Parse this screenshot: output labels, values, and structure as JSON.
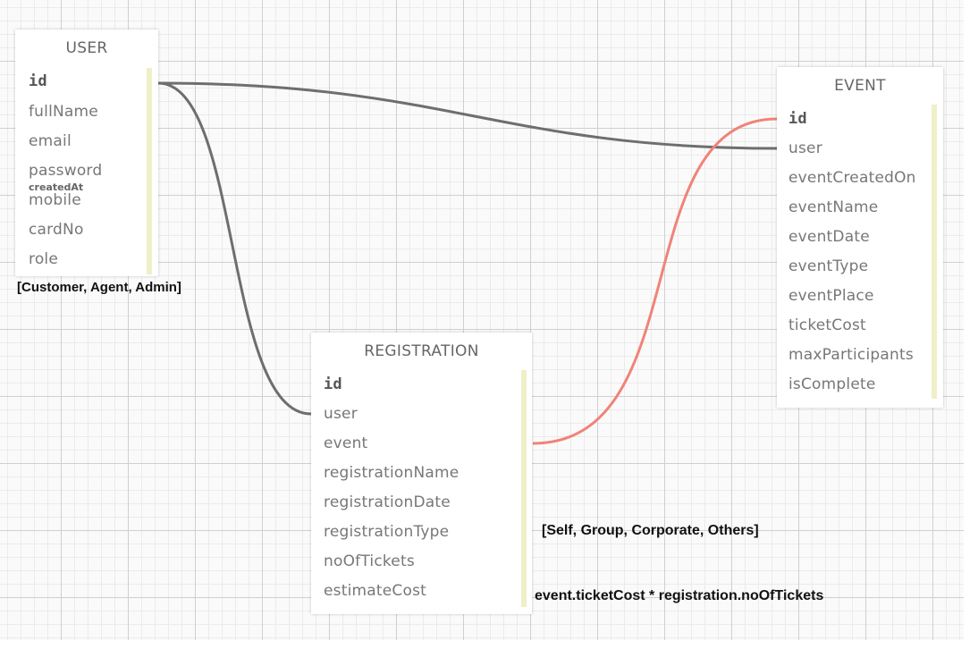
{
  "entities": {
    "user": {
      "title": "USER",
      "fields": [
        "id",
        "fullName",
        "email",
        "password",
        "mobile",
        "cardNo",
        "role"
      ],
      "inline_label": "createdAt"
    },
    "event": {
      "title": "EVENT",
      "fields": [
        "id",
        "user",
        "eventCreatedOn",
        "eventName",
        "eventDate",
        "eventType",
        "eventPlace",
        "ticketCost",
        "maxParticipants",
        "isComplete"
      ]
    },
    "registration": {
      "title": "REGISTRATION",
      "fields": [
        "id",
        "user",
        "event",
        "registrationName",
        "registrationDate",
        "registrationType",
        "noOfTickets",
        "estimateCost"
      ]
    }
  },
  "notes": {
    "role_values": "[Customer, Agent, Admin]",
    "registration_type_values": "[Self, Group, Corporate, Others]",
    "estimate_formula": "event.ticketCost * registration.noOfTickets"
  },
  "relations": [
    {
      "from": "USER.id",
      "to": "EVENT.user",
      "color": "#6e6e6e"
    },
    {
      "from": "USER.id",
      "to": "REGISTRATION.user",
      "color": "#6e6e6e"
    },
    {
      "from": "REGISTRATION.event",
      "to": "EVENT.id",
      "color": "#f08378"
    }
  ]
}
